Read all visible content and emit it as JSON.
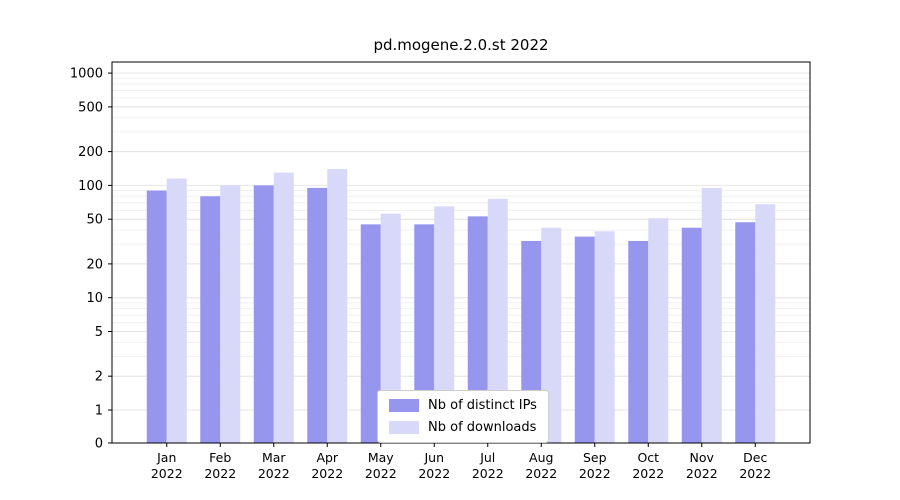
{
  "chart_data": {
    "type": "bar",
    "title": "pd.mogene.2.0.st 2022",
    "categories": [
      "Jan",
      "Feb",
      "Mar",
      "Apr",
      "May",
      "Jun",
      "Jul",
      "Aug",
      "Sep",
      "Oct",
      "Nov",
      "Dec"
    ],
    "year_label": "2022",
    "series": [
      {
        "name": "Nb of distinct IPs",
        "color": "#9696ee",
        "values": [
          90,
          80,
          100,
          95,
          45,
          45,
          53,
          32,
          35,
          32,
          42,
          47
        ]
      },
      {
        "name": "Nb of downloads",
        "color": "#d8d8f8",
        "values": [
          115,
          100,
          130,
          140,
          56,
          65,
          76,
          42,
          39,
          51,
          95,
          68
        ]
      }
    ],
    "yscale": "symlog",
    "yticks": [
      1000,
      500,
      200,
      100,
      50,
      20,
      10,
      5,
      2,
      1,
      0
    ],
    "ylim": [
      0,
      1000
    ],
    "xlabel": "",
    "ylabel": "",
    "grid": true,
    "legend_position": "lower center"
  },
  "colors": {
    "grid_minor": "#f0f0f0",
    "grid_major": "#e4e4e4",
    "axis": "#000000",
    "text": "#000000"
  }
}
